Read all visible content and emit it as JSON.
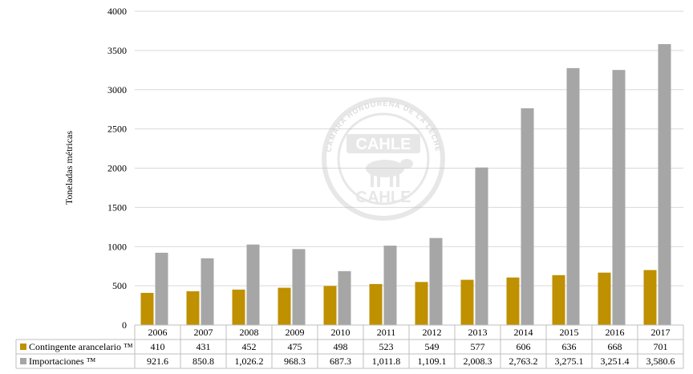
{
  "chart_data": {
    "type": "bar",
    "ylabel": "Toneladas métricas",
    "ylim": [
      0,
      4000
    ],
    "yticks": [
      0,
      500,
      1000,
      1500,
      2000,
      2500,
      3000,
      3500,
      4000
    ],
    "grid": true,
    "categories": [
      "2006",
      "2007",
      "2008",
      "2009",
      "2010",
      "2011",
      "2012",
      "2013",
      "2014",
      "2015",
      "2016",
      "2017"
    ],
    "series": [
      {
        "name": "Contingente arancelario ™",
        "color": "#BF9000",
        "values": [
          410,
          431,
          452,
          475,
          498,
          523,
          549,
          577,
          606,
          636,
          668,
          701
        ],
        "labels": [
          "410",
          "431",
          "452",
          "475",
          "498",
          "523",
          "549",
          "577",
          "606",
          "636",
          "668",
          "701"
        ]
      },
      {
        "name": "Importaciones ™",
        "color": "#A6A6A6",
        "values": [
          921.6,
          850.8,
          1026.2,
          968.3,
          687.3,
          1011.8,
          1109.1,
          2008.3,
          2763.2,
          3275.1,
          3251.4,
          3580.6
        ],
        "labels": [
          "921.6",
          "850.8",
          "1,026.2",
          "968.3",
          "687.3",
          "1,011.8",
          "1,109.1",
          "2,008.3",
          "2,763.2",
          "3,275.1",
          "3,251.4",
          "3,580.6"
        ]
      }
    ]
  },
  "watermark": {
    "top_text": "CAMARA HONDUREÑA DE LA LECHE",
    "logo_text": "CAHLE"
  }
}
